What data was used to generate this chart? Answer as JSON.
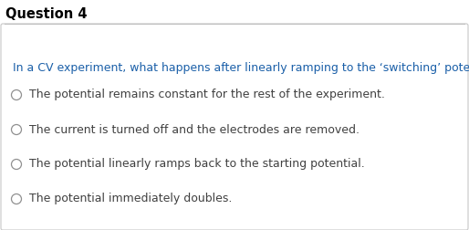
{
  "title": "Question 4",
  "title_fontsize": 10.5,
  "title_color": "#000000",
  "question_text": "In a CV experiment, what happens after linearly ramping to the ‘switching’ potential?",
  "question_color": "#1a5fa8",
  "question_fontsize": 9.0,
  "options": [
    "The potential remains constant for the rest of the experiment.",
    "The current is turned off and the electrodes are removed.",
    "The potential linearly ramps back to the starting potential.",
    "The potential immediately doubles."
  ],
  "option_color": "#404040",
  "option_fontsize": 9.0,
  "background_color": "#ffffff",
  "line_color": "#c0c0c0",
  "box_edge_color": "#c8c8c8",
  "circle_color": "#909090",
  "fig_width": 5.14,
  "fig_height": 2.52,
  "dpi": 100
}
